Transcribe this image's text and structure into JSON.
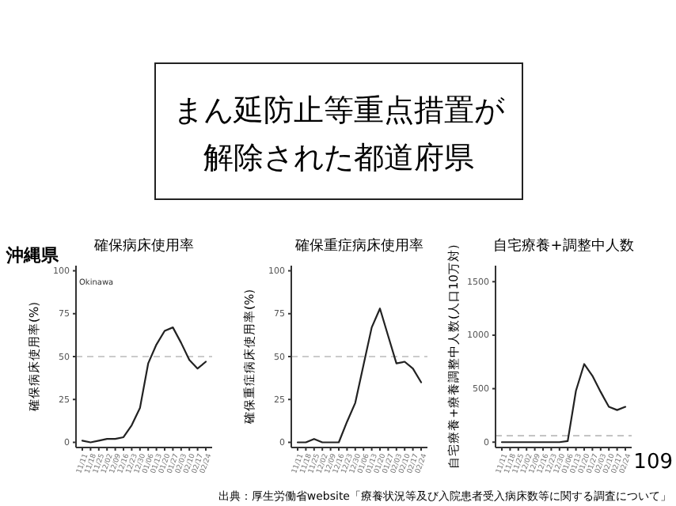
{
  "chart_data": [
    {
      "type": "line",
      "title": "確保病床使用率",
      "ylabel": "確保病床使用率(%)",
      "categories": [
        "11/11",
        "11/18",
        "11/25",
        "12/02",
        "12/09",
        "12/16",
        "12/23",
        "12/30",
        "01/06",
        "01/13",
        "01/20",
        "01/27",
        "02/03",
        "02/10",
        "02/17",
        "02/24"
      ],
      "series": [
        {
          "color": "#222222",
          "values": [
            1,
            0,
            1,
            2,
            2,
            3,
            10,
            20,
            46,
            57,
            65,
            67,
            58,
            48,
            43,
            47
          ]
        }
      ],
      "ylim": [
        -3,
        103
      ],
      "yticks": [
        0,
        25,
        50,
        75,
        100
      ],
      "grid": false,
      "line_style": "solid",
      "ref_lines": [
        {
          "axis": "y",
          "value": 50,
          "color": "#bbbbbb",
          "line_style": "dashed"
        }
      ],
      "annotations": [
        "まん延防止等重点措置が",
        "解除された都道府県",
        "沖縄県",
        "Okinawa",
        "出典：厚生労働省website「療養状況等及び入院患者受入病床数等に関する調査について」",
        "109"
      ]
    },
    {
      "type": "line",
      "title": "確保重症病床使用率",
      "ylabel": "確保重症病床使用率(%)",
      "categories": [
        "11/11",
        "11/18",
        "11/25",
        "12/02",
        "12/09",
        "12/16",
        "12/23",
        "12/30",
        "01/06",
        "01/13",
        "01/20",
        "01/27",
        "02/03",
        "02/10",
        "02/17",
        "02/24"
      ],
      "series": [
        {
          "color": "#222222",
          "values": [
            0,
            0,
            2,
            0,
            0,
            0,
            12,
            23,
            45,
            67,
            78,
            62,
            46,
            47,
            43,
            35
          ]
        }
      ],
      "ylim": [
        -3,
        103
      ],
      "yticks": [
        0,
        25,
        50,
        75,
        100
      ],
      "grid": false,
      "line_style": "solid",
      "ref_lines": [
        {
          "axis": "y",
          "value": 50,
          "color": "#bbbbbb",
          "line_style": "dashed"
        }
      ]
    },
    {
      "type": "line",
      "title": "自宅療養+調整中人数",
      "ylabel": "自宅療養+療養調整中人数(人口10万対)",
      "categories": [
        "11/11",
        "11/18",
        "11/25",
        "12/02",
        "12/09",
        "12/16",
        "12/23",
        "12/30",
        "01/06",
        "01/13",
        "01/20",
        "01/27",
        "02/03",
        "02/10",
        "02/17",
        "02/24"
      ],
      "series": [
        {
          "color": "#222222",
          "values": [
            0,
            0,
            0,
            0,
            0,
            0,
            0,
            0,
            10,
            480,
            730,
            620,
            470,
            330,
            300,
            330
          ]
        }
      ],
      "ylim": [
        -50,
        1650
      ],
      "yticks": [
        0,
        500,
        1000,
        1500
      ],
      "grid": false,
      "line_style": "solid",
      "ref_lines": [
        {
          "axis": "y",
          "value": 60,
          "color": "#bbbbbb",
          "line_style": "dashed"
        }
      ]
    }
  ]
}
